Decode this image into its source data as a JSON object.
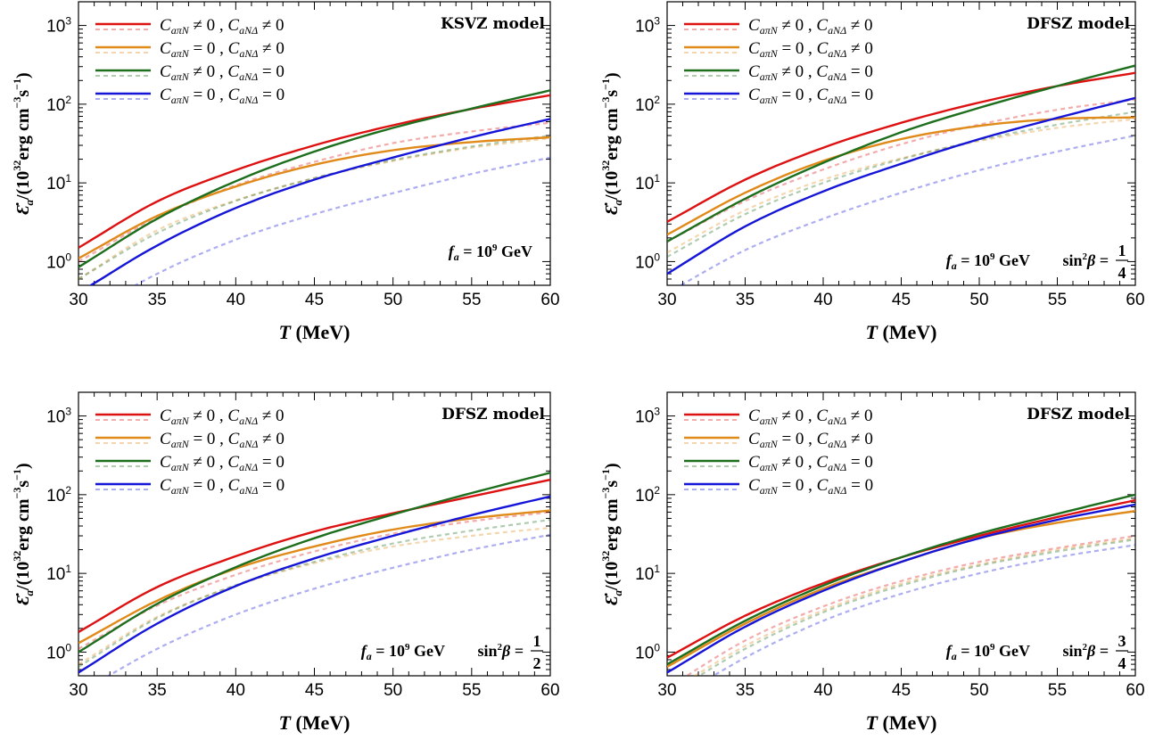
{
  "legend_labels": [
    "CₐπN ≠ 0 , CₐNΔ ≠ 0",
    "CₐπN = 0 , CₐNΔ ≠ 0",
    "CₐπN ≠ 0 , CₐNΔ = 0",
    "CₐπN = 0 , CₐNΔ = 0"
  ],
  "legend_parts": [
    {
      "c1": "aπN",
      "op1": "≠ 0 ,",
      "c2": "aNΔ",
      "op2": "≠ 0"
    },
    {
      "c1": "aπN",
      "op1": "= 0 ,",
      "c2": "aNΔ",
      "op2": "≠ 0"
    },
    {
      "c1": "aπN",
      "op1": "≠ 0 ,",
      "c2": "aNΔ",
      "op2": "= 0"
    },
    {
      "c1": "aπN",
      "op1": "= 0 ,",
      "c2": "aNΔ",
      "op2": "= 0"
    }
  ],
  "colors": {
    "red": "#dd1111",
    "orange": "#e08a1a",
    "green": "#1d6e1d",
    "blue": "#1515d8"
  },
  "x_tick_labels": [
    "30",
    "35",
    "40",
    "45",
    "50",
    "55",
    "60"
  ],
  "xlabel": "T (MeV)",
  "ylabel": "Ɛ̇a/(10^32 erg cm^-3 s^-1)",
  "fa_text": "fₐ = 10⁹ GeV",
  "chart_data": [
    {
      "type": "line",
      "title": "KSVZ model",
      "annotation": "fₐ = 10⁹ GeV",
      "sin2beta": "",
      "xlabel": "T (MeV)",
      "ylabel": "Ɛ̇a/(10^32 erg cm^-3 s^-1)",
      "xlim": [
        30,
        60
      ],
      "ylim": [
        0.5,
        2000
      ],
      "yscale": "log",
      "x": [
        30,
        35,
        40,
        45,
        50,
        55,
        60
      ],
      "series": [
        {
          "name": "CₐπN ≠ 0 , CₐNΔ ≠ 0",
          "color": "red",
          "solid": [
            1.5,
            5.8,
            14.5,
            30,
            54,
            87,
            130
          ],
          "dashed": [
            1.0,
            3.6,
            9.3,
            18.5,
            32,
            45,
            58
          ]
        },
        {
          "name": "CₐπN = 0 , CₐNΔ ≠ 0",
          "color": "orange",
          "solid": [
            1.1,
            3.8,
            9,
            17,
            26,
            33,
            38
          ],
          "dashed": [
            0.6,
            2.5,
            6.0,
            11.5,
            19.0,
            28,
            37
          ]
        },
        {
          "name": "CₐπN ≠ 0 , CₐNΔ = 0",
          "color": "green",
          "solid": [
            0.85,
            3.5,
            10.5,
            25,
            50,
            88,
            150
          ],
          "dashed": [
            0.6,
            2.3,
            5.9,
            11.5,
            19.5,
            29,
            40
          ]
        },
        {
          "name": "CₐπN = 0 , CₐNΔ = 0",
          "color": "blue",
          "solid": [
            0.4,
            1.6,
            4.8,
            11,
            21,
            38,
            65
          ],
          "dashed": [
            0.19,
            0.7,
            1.9,
            4.0,
            7.4,
            13,
            21
          ]
        }
      ]
    },
    {
      "type": "line",
      "title": "DFSZ model",
      "annotation": "fₐ = 10⁹ GeV",
      "sin2beta": "1/4",
      "xlabel": "T (MeV)",
      "ylabel": "Ɛ̇a/(10^32 erg cm^-3 s^-1)",
      "xlim": [
        30,
        60
      ],
      "ylim": [
        0.5,
        2000
      ],
      "yscale": "log",
      "x": [
        30,
        35,
        40,
        45,
        50,
        55,
        60
      ],
      "series": [
        {
          "name": "CₐπN ≠ 0 , CₐNΔ ≠ 0",
          "color": "red",
          "solid": [
            3.2,
            11,
            28,
            58,
            105,
            170,
            250
          ],
          "dashed": [
            1.8,
            5.9,
            14.8,
            31,
            55,
            85,
            115
          ]
        },
        {
          "name": "CₐπN = 0 , CₐNΔ ≠ 0",
          "color": "orange",
          "solid": [
            2.2,
            7.5,
            19,
            36,
            53,
            65,
            68
          ],
          "dashed": [
            1.3,
            4.5,
            11,
            20.5,
            34,
            50,
            65
          ]
        },
        {
          "name": "CₐπN ≠ 0 , CₐNΔ = 0",
          "color": "green",
          "solid": [
            1.8,
            6.3,
            18,
            44,
            90,
            170,
            310
          ],
          "dashed": [
            1.15,
            4.0,
            10,
            20,
            35,
            55,
            80
          ]
        },
        {
          "name": "CₐπN = 0 , CₐNΔ = 0",
          "color": "blue",
          "solid": [
            0.7,
            2.8,
            7.8,
            17.5,
            36,
            67,
            120
          ],
          "dashed": [
            0.4,
            1.4,
            3.5,
            7.5,
            14.5,
            25,
            40
          ]
        }
      ]
    },
    {
      "type": "line",
      "title": "DFSZ model",
      "annotation": "fₐ = 10⁹ GeV",
      "sin2beta": "1/2",
      "xlabel": "T (MeV)",
      "ylabel": "Ɛ̇a/(10^32 erg cm^-3 s^-1)",
      "xlim": [
        30,
        60
      ],
      "ylim": [
        0.5,
        2000
      ],
      "yscale": "log",
      "x": [
        30,
        35,
        40,
        45,
        50,
        55,
        60
      ],
      "series": [
        {
          "name": "CₐπN ≠ 0 , CₐNΔ ≠ 0",
          "color": "red",
          "solid": [
            1.8,
            6.7,
            16.5,
            34,
            58,
            95,
            155
          ],
          "dashed": [
            1.1,
            3.9,
            9.6,
            19,
            32,
            46,
            60
          ]
        },
        {
          "name": "CₐπN = 0 , CₐNΔ ≠ 0",
          "color": "orange",
          "solid": [
            1.3,
            4.5,
            11.5,
            22,
            36,
            50,
            63
          ],
          "dashed": [
            0.7,
            2.8,
            7,
            13.5,
            22,
            30,
            38
          ]
        },
        {
          "name": "CₐπN ≠ 0 , CₐNΔ = 0",
          "color": "green",
          "solid": [
            1.0,
            4.1,
            12,
            28,
            56,
            105,
            190
          ],
          "dashed": [
            0.65,
            2.7,
            7.1,
            14,
            24,
            35,
            48
          ]
        },
        {
          "name": "CₐπN = 0 , CₐNΔ = 0",
          "color": "blue",
          "solid": [
            0.55,
            2.3,
            6.9,
            15.5,
            30,
            55,
            95
          ],
          "dashed": [
            0.3,
            1.1,
            3.0,
            6.4,
            11.8,
            20,
            31
          ]
        }
      ]
    },
    {
      "type": "line",
      "title": "DFSZ model",
      "annotation": "fₐ = 10⁹ GeV",
      "sin2beta": "3/4",
      "xlabel": "T (MeV)",
      "ylabel": "Ɛ̇a/(10^32 erg cm^-3 s^-1)",
      "xlim": [
        30,
        60
      ],
      "ylim": [
        0.5,
        2000
      ],
      "yscale": "log",
      "x": [
        30,
        35,
        40,
        45,
        50,
        55,
        60
      ],
      "series": [
        {
          "name": "CₐπN ≠ 0 , CₐNΔ ≠ 0",
          "color": "red",
          "solid": [
            0.85,
            2.9,
            7.5,
            16,
            30,
            52,
            85
          ],
          "dashed": [
            0.35,
            1.4,
            3.8,
            8,
            14,
            21,
            30
          ]
        },
        {
          "name": "CₐπN = 0 , CₐNΔ ≠ 0",
          "color": "orange",
          "solid": [
            0.65,
            2.3,
            6.4,
            14,
            28,
            44,
            62
          ],
          "dashed": [
            0.3,
            1.2,
            3.4,
            7.4,
            13,
            20,
            28
          ]
        },
        {
          "name": "CₐπN ≠ 0 , CₐNΔ = 0",
          "color": "green",
          "solid": [
            0.7,
            2.5,
            7,
            16,
            32,
            57,
            100
          ],
          "dashed": [
            0.28,
            1.1,
            3.2,
            7,
            12.5,
            19,
            27
          ]
        },
        {
          "name": "CₐπN = 0 , CₐNΔ = 0",
          "color": "blue",
          "solid": [
            0.55,
            2.1,
            6,
            14,
            28,
            48,
            75
          ],
          "dashed": [
            0.22,
            0.85,
            2.5,
            5.5,
            10,
            16,
            23
          ]
        }
      ]
    }
  ]
}
